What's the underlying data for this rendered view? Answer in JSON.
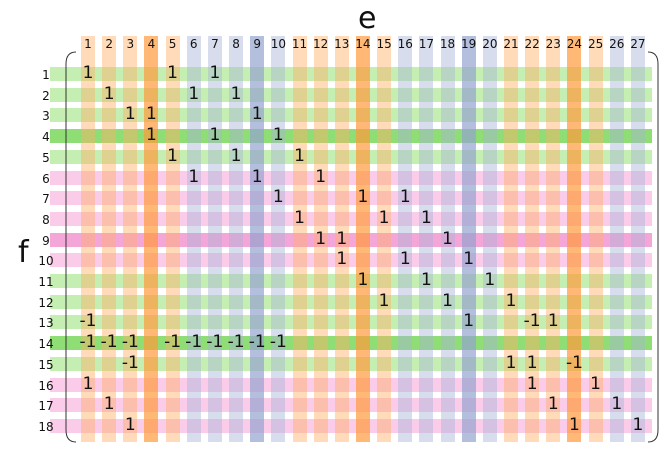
{
  "matrix": {
    "column_title": "e",
    "row_title": "f",
    "column_labels": [
      "1",
      "2",
      "3",
      "4",
      "5",
      "6",
      "7",
      "8",
      "9",
      "10",
      "11",
      "12",
      "13",
      "14",
      "15",
      "16",
      "17",
      "18",
      "19",
      "20",
      "21",
      "22",
      "23",
      "24",
      "25",
      "26",
      "27"
    ],
    "row_labels": [
      "1",
      "2",
      "3",
      "4",
      "5",
      "6",
      "7",
      "8",
      "9",
      "10",
      "11",
      "12",
      "13",
      "14",
      "15",
      "16",
      "17",
      "18"
    ],
    "entries": [
      {
        "row": 1,
        "col": 1,
        "value": "1"
      },
      {
        "row": 1,
        "col": 5,
        "value": "1"
      },
      {
        "row": 1,
        "col": 7,
        "value": "1"
      },
      {
        "row": 2,
        "col": 2,
        "value": "1"
      },
      {
        "row": 2,
        "col": 6,
        "value": "1"
      },
      {
        "row": 2,
        "col": 8,
        "value": "1"
      },
      {
        "row": 3,
        "col": 3,
        "value": "1"
      },
      {
        "row": 3,
        "col": 4,
        "value": "1"
      },
      {
        "row": 3,
        "col": 9,
        "value": "1"
      },
      {
        "row": 4,
        "col": 4,
        "value": "1"
      },
      {
        "row": 4,
        "col": 7,
        "value": "1"
      },
      {
        "row": 4,
        "col": 10,
        "value": "1"
      },
      {
        "row": 5,
        "col": 5,
        "value": "1"
      },
      {
        "row": 5,
        "col": 8,
        "value": "1"
      },
      {
        "row": 5,
        "col": 11,
        "value": "1"
      },
      {
        "row": 6,
        "col": 6,
        "value": "1"
      },
      {
        "row": 6,
        "col": 9,
        "value": "1"
      },
      {
        "row": 6,
        "col": 12,
        "value": "1"
      },
      {
        "row": 7,
        "col": 10,
        "value": "1"
      },
      {
        "row": 7,
        "col": 14,
        "value": "1"
      },
      {
        "row": 7,
        "col": 16,
        "value": "1"
      },
      {
        "row": 8,
        "col": 11,
        "value": "1"
      },
      {
        "row": 8,
        "col": 15,
        "value": "1"
      },
      {
        "row": 8,
        "col": 17,
        "value": "1"
      },
      {
        "row": 9,
        "col": 12,
        "value": "1"
      },
      {
        "row": 9,
        "col": 13,
        "value": "1"
      },
      {
        "row": 9,
        "col": 18,
        "value": "1"
      },
      {
        "row": 10,
        "col": 13,
        "value": "1"
      },
      {
        "row": 10,
        "col": 16,
        "value": "1"
      },
      {
        "row": 10,
        "col": 19,
        "value": "1"
      },
      {
        "row": 11,
        "col": 14,
        "value": "1"
      },
      {
        "row": 11,
        "col": 17,
        "value": "1"
      },
      {
        "row": 11,
        "col": 20,
        "value": "1"
      },
      {
        "row": 12,
        "col": 15,
        "value": "1"
      },
      {
        "row": 12,
        "col": 18,
        "value": "1"
      },
      {
        "row": 12,
        "col": 21,
        "value": "1"
      },
      {
        "row": 13,
        "col": 1,
        "value": "-1"
      },
      {
        "row": 13,
        "col": 19,
        "value": "1"
      },
      {
        "row": 13,
        "col": 22,
        "value": "-1"
      },
      {
        "row": 13,
        "col": 23,
        "value": "1"
      },
      {
        "row": 14,
        "col": 1,
        "value": "-1"
      },
      {
        "row": 14,
        "col": 2,
        "value": "-1"
      },
      {
        "row": 14,
        "col": 3,
        "value": "-1"
      },
      {
        "row": 14,
        "col": 5,
        "value": "-1"
      },
      {
        "row": 14,
        "col": 6,
        "value": "-1"
      },
      {
        "row": 14,
        "col": 7,
        "value": "-1"
      },
      {
        "row": 14,
        "col": 8,
        "value": "-1"
      },
      {
        "row": 14,
        "col": 9,
        "value": "-1"
      },
      {
        "row": 14,
        "col": 10,
        "value": "-1"
      },
      {
        "row": 15,
        "col": 3,
        "value": "-1"
      },
      {
        "row": 15,
        "col": 21,
        "value": "1"
      },
      {
        "row": 15,
        "col": 22,
        "value": "1"
      },
      {
        "row": 15,
        "col": 24,
        "value": "-1"
      },
      {
        "row": 16,
        "col": 1,
        "value": "1"
      },
      {
        "row": 16,
        "col": 22,
        "value": "1"
      },
      {
        "row": 16,
        "col": 25,
        "value": "1"
      },
      {
        "row": 17,
        "col": 2,
        "value": "1"
      },
      {
        "row": 17,
        "col": 23,
        "value": "1"
      },
      {
        "row": 17,
        "col": 26,
        "value": "1"
      },
      {
        "row": 18,
        "col": 3,
        "value": "1"
      },
      {
        "row": 18,
        "col": 24,
        "value": "1"
      },
      {
        "row": 18,
        "col": 27,
        "value": "1"
      }
    ],
    "row_band_colors": [
      "#7ed957",
      "#7ed957",
      "#7ed957",
      "#5fcf3a",
      "#7ed957",
      "#f48fcf",
      "#f48fcf",
      "#f48fcf",
      "#f080c8",
      "#f48fcf",
      "#7ed957",
      "#7ed957",
      "#7ed957",
      "#5fcf3a",
      "#7ed957",
      "#f48fcf",
      "#f48fcf",
      "#f48fcf"
    ],
    "column_band_colors": [
      "#ffb066",
      "#ffb066",
      "#ffb066",
      "#ff9a3c",
      "#ffb066",
      "#a9b4d8",
      "#a9b4d8",
      "#a9b4d8",
      "#94a3cf",
      "#a9b4d8",
      "#ffb066",
      "#ffb066",
      "#ffb066",
      "#ff9a3c",
      "#ffb066",
      "#a9b4d8",
      "#a9b4d8",
      "#a9b4d8",
      "#94a3cf",
      "#a9b4d8",
      "#ffb066",
      "#ffb066",
      "#ffb066",
      "#ff9a3c",
      "#ffb066",
      "#a9b4d8",
      "#a9b4d8"
    ]
  }
}
